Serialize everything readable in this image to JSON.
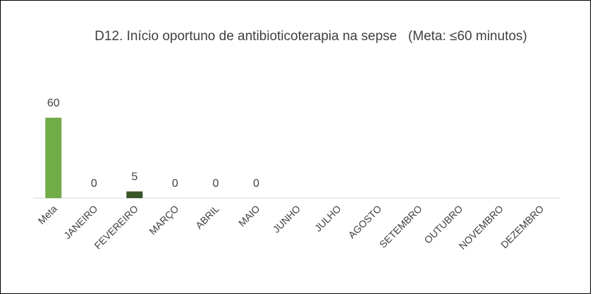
{
  "chart_data": {
    "type": "bar",
    "title": "D12. Início oportuno de antibioticoterapia na sepse   (Meta: ≤60 minutos)",
    "categories": [
      "Meta",
      "JANEIRO",
      "FEVEREIRO",
      "MARÇO",
      "ABRIL",
      "MAIO",
      "JUNHO",
      "JULHO",
      "AGOSTO",
      "SETEMBRO",
      "OUTUBRO",
      "NOVEMBRO",
      "DEZEMBRO"
    ],
    "values": [
      60,
      0,
      5,
      0,
      0,
      0,
      null,
      null,
      null,
      null,
      null,
      null,
      null
    ],
    "colors": [
      "#70ad47",
      "#375623",
      "#375623",
      "#375623",
      "#375623",
      "#375623",
      "#375623",
      "#375623",
      "#375623",
      "#375623",
      "#375623",
      "#375623",
      "#375623"
    ]
  }
}
